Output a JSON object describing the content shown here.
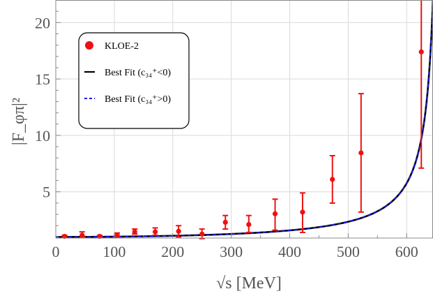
{
  "chart_data": {
    "type": "scatter",
    "xlabel": "√s [MeV]",
    "ylabel": "|F_φπ|²",
    "xlim": [
      0,
      645
    ],
    "ylim": [
      0.9,
      22
    ],
    "x_ticks": [
      0,
      100,
      200,
      300,
      400,
      500,
      600
    ],
    "y_ticks": [
      5,
      10,
      15,
      20
    ],
    "legend_position": "top-left",
    "legend": [
      {
        "label": "KLOE-2",
        "marker": "red-dot",
        "color": "#ee1111"
      },
      {
        "label": "Best Fit (c₃₄⁺<0)",
        "marker": "solid-line",
        "color": "#000000"
      },
      {
        "label": "Best Fit (c₃₄⁺>0)",
        "marker": "dashed-line",
        "color": "#1a1aee"
      }
    ],
    "series": [
      {
        "name": "KLOE-2",
        "color": "#ee1111",
        "points": [
          {
            "x": 15,
            "y": 1.05,
            "err_low": 0.95,
            "err_high": 1.15
          },
          {
            "x": 45,
            "y": 1.15,
            "err_low": 0.95,
            "err_high": 1.45
          },
          {
            "x": 75,
            "y": 1.05,
            "err_low": 0.95,
            "err_high": 1.15
          },
          {
            "x": 105,
            "y": 1.15,
            "err_low": 1.0,
            "err_high": 1.35
          },
          {
            "x": 135,
            "y": 1.45,
            "err_low": 1.25,
            "err_high": 1.7
          },
          {
            "x": 170,
            "y": 1.45,
            "err_low": 1.15,
            "err_high": 1.8
          },
          {
            "x": 210,
            "y": 1.5,
            "err_low": 1.0,
            "err_high": 2.0
          },
          {
            "x": 250,
            "y": 1.25,
            "err_low": 0.85,
            "err_high": 1.7
          },
          {
            "x": 290,
            "y": 2.3,
            "err_low": 1.7,
            "err_high": 2.9
          },
          {
            "x": 330,
            "y": 2.1,
            "err_low": 1.4,
            "err_high": 2.9
          },
          {
            "x": 375,
            "y": 3.05,
            "err_low": 1.6,
            "err_high": 4.35
          },
          {
            "x": 422,
            "y": 3.2,
            "err_low": 1.4,
            "err_high": 4.9
          },
          {
            "x": 473,
            "y": 6.1,
            "err_low": 4.0,
            "err_high": 8.2
          },
          {
            "x": 522,
            "y": 8.45,
            "err_low": 3.2,
            "err_high": 13.7
          },
          {
            "x": 625,
            "y": 17.4,
            "err_low": 7.1,
            "err_high": 22.0
          }
        ]
      },
      {
        "name": "Best Fit (c₃₄⁺<0)",
        "color": "#000000",
        "style": "solid",
        "model": "1/(1 - x²/660²)"
      },
      {
        "name": "Best Fit (c₃₄⁺>0)",
        "color": "#1a1aee",
        "style": "dashed",
        "model": "1/(1 - x²/660²)"
      }
    ]
  }
}
